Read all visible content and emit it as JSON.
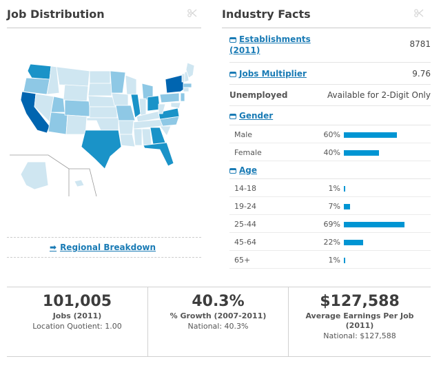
{
  "left_panel": {
    "title": "Job Distribution",
    "regional_link": "Regional Breakdown"
  },
  "map": {
    "colors": {
      "light": "#cfe6f1",
      "medium_light": "#8ec8e5",
      "medium": "#1a93c8",
      "dark": "#0065b0",
      "border": "#ffffff"
    },
    "legend_note": "",
    "state_levels": {
      "CA": "dark",
      "NY": "dark",
      "WA": "medium",
      "TX": "medium",
      "FL": "medium",
      "GA": "medium",
      "IL": "medium",
      "OH": "medium",
      "VA": "medium",
      "OR": "medium_light",
      "UT": "medium_light",
      "CO": "medium_light",
      "AZ": "medium_light",
      "MN": "medium_light",
      "MI": "medium_light",
      "MO": "medium_light",
      "PA": "medium_light",
      "NC": "medium_light",
      "MA": "medium_light",
      "NJ": "medium_light"
    }
  },
  "right_panel": {
    "title": "Industry Facts",
    "establishments": {
      "label": "Establishments",
      "label2": "(2011)",
      "value": "8781"
    },
    "jobs_multiplier": {
      "label": "Jobs Multiplier",
      "value": "9.76"
    },
    "unemployed": {
      "label": "Unemployed",
      "value": "Available for 2-Digit Only"
    },
    "gender": {
      "label": "Gender",
      "rows": [
        {
          "label": "Male",
          "pct_text": "60%",
          "pct": 60
        },
        {
          "label": "Female",
          "pct_text": "40%",
          "pct": 40
        }
      ]
    },
    "age": {
      "label": "Age",
      "rows": [
        {
          "label": "14-18",
          "pct_text": "1%",
          "pct": 1
        },
        {
          "label": "19-24",
          "pct_text": "7%",
          "pct": 7
        },
        {
          "label": "25-44",
          "pct_text": "69%",
          "pct": 69
        },
        {
          "label": "45-64",
          "pct_text": "22%",
          "pct": 22
        },
        {
          "label": "65+",
          "pct_text": "1%",
          "pct": 1
        }
      ]
    },
    "bar_color": "#0095d3"
  },
  "stats": [
    {
      "value": "101,005",
      "label": "Jobs (2011)",
      "sub": "Location Quotient: 1.00"
    },
    {
      "value": "40.3%",
      "label": "% Growth (2007-2011)",
      "sub": "National: 40.3%"
    },
    {
      "value": "$127,588",
      "label": "Average Earnings Per Job",
      "label2": "(2011)",
      "sub": "National: $127,588"
    }
  ]
}
